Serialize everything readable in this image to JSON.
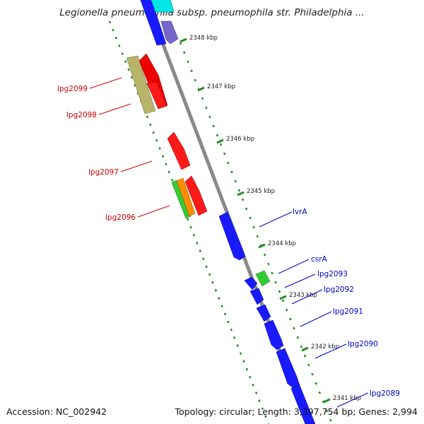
{
  "title": "Legionella pneumophila subsp. pneumophila str. Philadelphia ...",
  "footer": {
    "accession": "Accession: NC_002942",
    "stats": "Topology: circular; Length: 3,397,754 bp; Genes: 2,994"
  },
  "ticks": [
    "2348 kbp",
    "2347 kbp",
    "2346 kbp",
    "2345 kbp",
    "2344 kbp",
    "2343 kbp",
    "2342 kbp",
    "2341 kbp"
  ],
  "colors": {
    "backbone": "#888888",
    "forward_cds": "#0000ff",
    "reverse_cds": "#ff0000",
    "rna": "#33cc33",
    "other_a": "#b8b46a",
    "other_b": "#ff8c00",
    "other_c": "#7766cc",
    "other_d": "#00e5e5",
    "ring_dash": "#228b22",
    "forward_label": "#0000cc",
    "reverse_label": "#cc0000"
  },
  "reverse_labels": [
    "lpg2099",
    "lpg2098",
    "lpg2097",
    "lpg2096"
  ],
  "forward_labels": [
    "lvrA",
    "csrA",
    "lpg2093",
    "lpg2092",
    "lpg2091",
    "lpg2090",
    "lpg2089"
  ]
}
